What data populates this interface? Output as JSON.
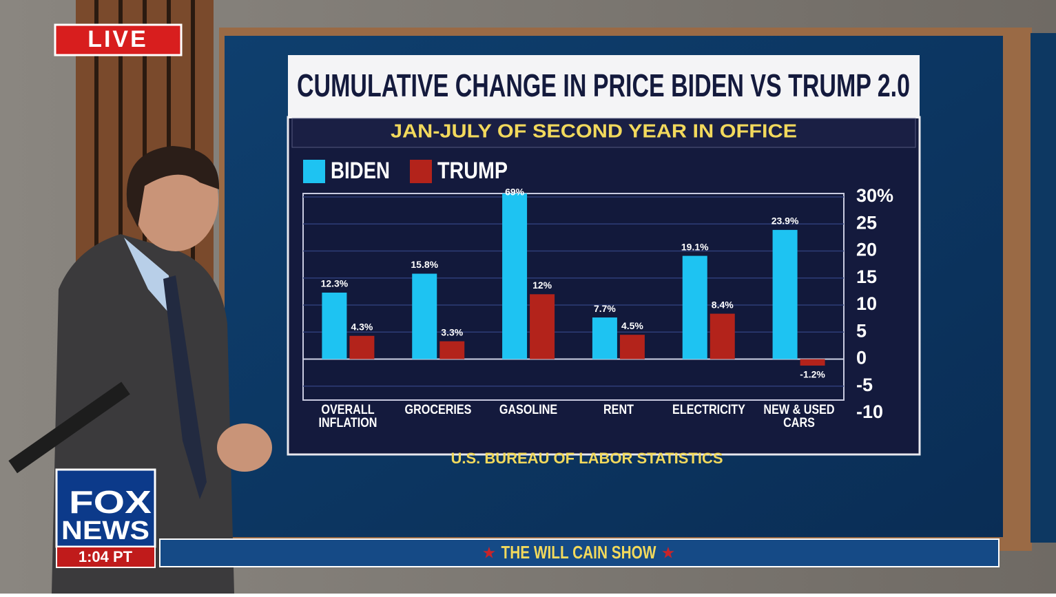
{
  "overlay": {
    "live": "LIVE",
    "logo_top": "FOX",
    "logo_bottom": "NEWS",
    "time": "1:04 PT",
    "show": "THE WILL CAIN SHOW"
  },
  "chart_data": {
    "type": "bar",
    "title": "CUMULATIVE CHANGE IN PRICE BIDEN VS TRUMP 2.0",
    "subtitle": "JAN-JULY OF SECOND YEAR IN OFFICE",
    "source": "U.S. BUREAU OF LABOR STATISTICS",
    "categories": [
      "OVERALL INFLATION",
      "GROCERIES",
      "GASOLINE",
      "RENT",
      "ELECTRICITY",
      "NEW & USED CARS"
    ],
    "series": [
      {
        "name": "BIDEN",
        "color": "#1ec3f2",
        "values": [
          12.3,
          15.8,
          69,
          7.7,
          19.1,
          23.9
        ],
        "value_labels": [
          "12.3%",
          "15.8%",
          "69%",
          "7.7%",
          "19.1%",
          "23.9%"
        ]
      },
      {
        "name": "TRUMP",
        "color": "#b3231b",
        "values": [
          4.3,
          3.3,
          12,
          4.5,
          8.4,
          -1.2
        ],
        "value_labels": [
          "4.3%",
          "3.3%",
          "12%",
          "4.5%",
          "8.4%",
          "-1.2%"
        ]
      }
    ],
    "ylim": [
      -10,
      30
    ],
    "yticks": [
      -10,
      -5,
      0,
      5,
      10,
      15,
      20,
      25,
      {
        "value": 30,
        "label": "30%"
      }
    ],
    "grid": true,
    "legend": "top-left"
  }
}
